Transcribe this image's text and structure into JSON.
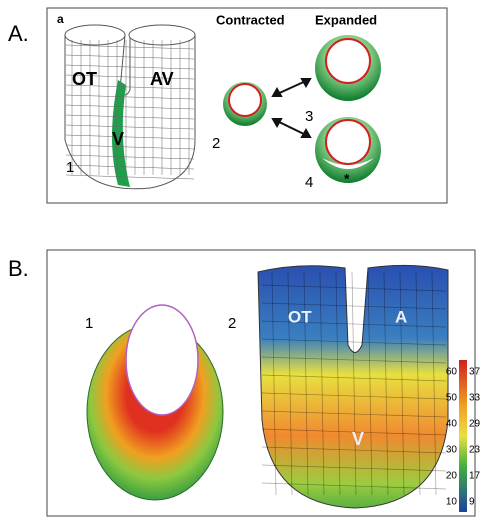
{
  "panel_a": {
    "label": "A.",
    "sublabel": "a",
    "states": [
      "Contracted",
      "Expanded"
    ],
    "regions": [
      "OT",
      "AV",
      "V"
    ],
    "numbers": [
      1,
      2,
      3,
      4
    ],
    "marker": "*"
  },
  "panel_b": {
    "label": "B.",
    "numbers": [
      1,
      2
    ],
    "regions": [
      "OT",
      "A",
      "V"
    ],
    "colorbar": [
      [
        60,
        37
      ],
      [
        50,
        33
      ],
      [
        40,
        29
      ],
      [
        30,
        23
      ],
      [
        20,
        17
      ],
      [
        10,
        9
      ]
    ]
  }
}
